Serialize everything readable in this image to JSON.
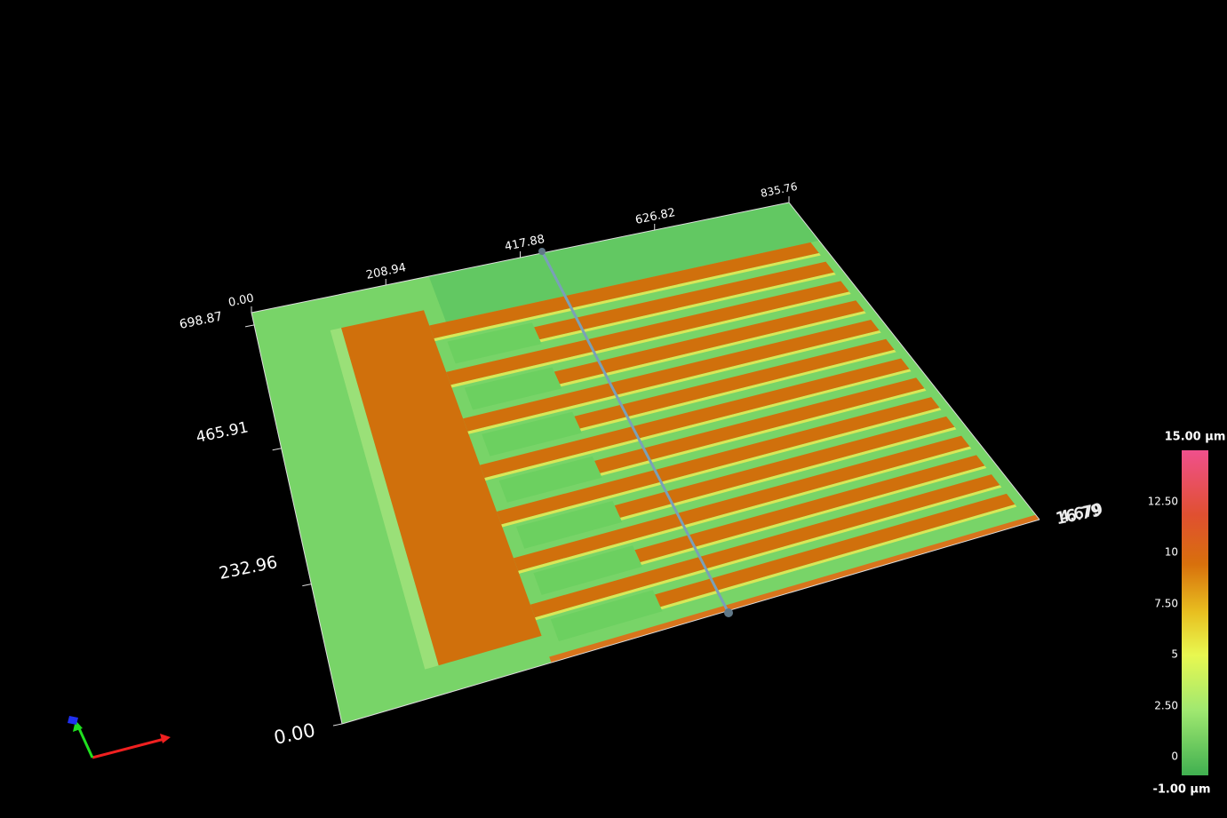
{
  "x_axis": {
    "ticks": [
      "0.00",
      "208.94",
      "417.88",
      "626.82",
      "835.76"
    ]
  },
  "y_axis": {
    "ticks": [
      "698.87",
      "465.91",
      "232.96",
      "0.00"
    ]
  },
  "z_axis": {
    "labels": [
      "16.79",
      "4.679"
    ]
  },
  "colorbar": {
    "max_label": "15.00 µm",
    "ticks": [
      "12.50",
      "10",
      "7.50",
      "5",
      "2.50",
      "0"
    ],
    "min_label": "-1.00 µm"
  }
}
